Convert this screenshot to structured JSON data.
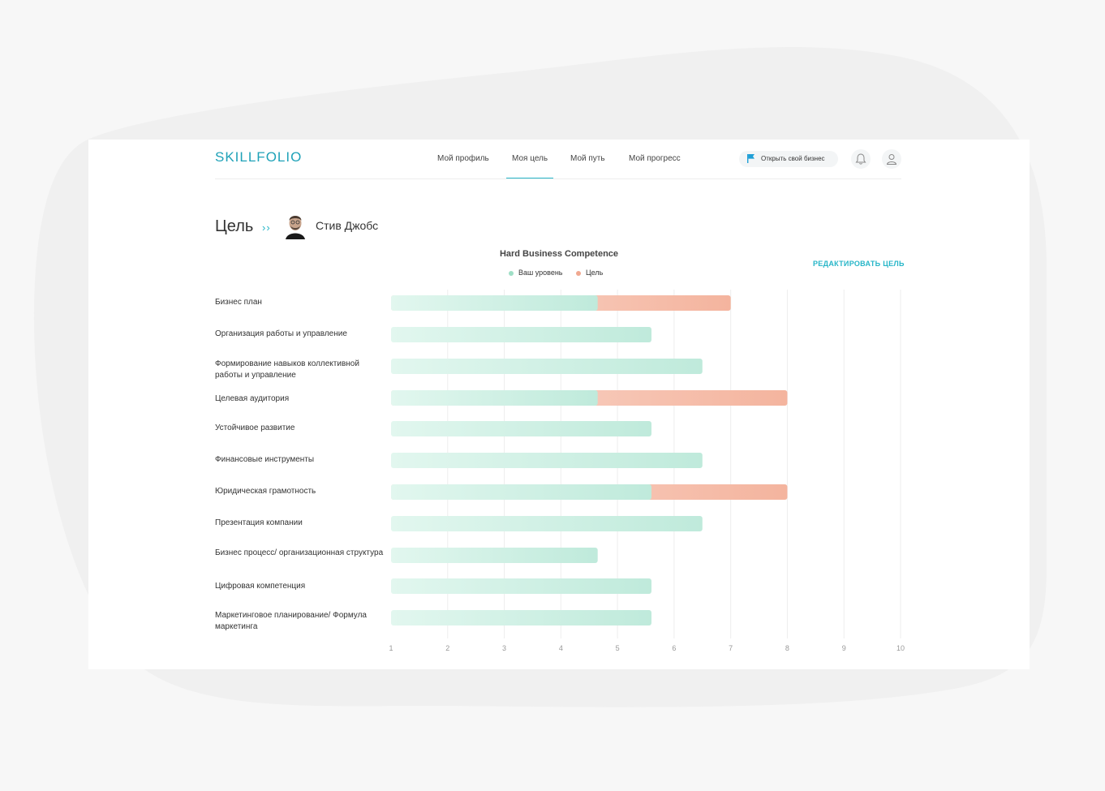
{
  "colors": {
    "accent": "#27b6c8",
    "level": "#bfeadb",
    "goal": "#f4b9a4",
    "text": "#333333",
    "grid": "#eeeeee"
  },
  "header": {
    "logo": "SKILLFOLIO",
    "nav": [
      {
        "label": "Мой профиль",
        "active": false
      },
      {
        "label": "Моя цель",
        "active": true
      },
      {
        "label": "Мой путь",
        "active": false
      },
      {
        "label": "Мой прогресс",
        "active": false
      }
    ],
    "business_button": {
      "label": "Открыть свой бизнес",
      "icon": "flag-icon"
    },
    "icons": [
      "bell-icon",
      "user-icon"
    ]
  },
  "page": {
    "title": "Цель",
    "person_name": "Стив Джобс",
    "edit_link": "РЕДАКТИРОВАТЬ ЦЕЛЬ"
  },
  "chart_data": {
    "type": "bar",
    "orientation": "horizontal",
    "title": "Hard Business Competence",
    "legend_position": "top-center",
    "xlim": [
      1,
      10
    ],
    "x_ticks": [
      1,
      2,
      3,
      4,
      5,
      6,
      7,
      8,
      9,
      10
    ],
    "grid": true,
    "categories": [
      "Бизнес план",
      "Организация работы и управление",
      "Формирование навыков коллективной работы и управление",
      "Целевая аудитория",
      "Устойчивое развитие",
      "Финансовые инструменты",
      "Юридическая грамотность",
      "Презентация компании",
      "Бизнес процесс/ организационная структура",
      "Цифровая компетенция",
      "Маркетинговое планирование/ Формула маркетинга"
    ],
    "series": [
      {
        "name": "Ваш уровень",
        "values": [
          4.65,
          5.6,
          6.5,
          4.65,
          5.6,
          6.5,
          5.6,
          6.5,
          4.65,
          5.6,
          5.6
        ]
      },
      {
        "name": "Цель",
        "values": [
          7,
          null,
          null,
          8,
          null,
          null,
          8,
          null,
          null,
          null,
          null
        ]
      }
    ]
  }
}
